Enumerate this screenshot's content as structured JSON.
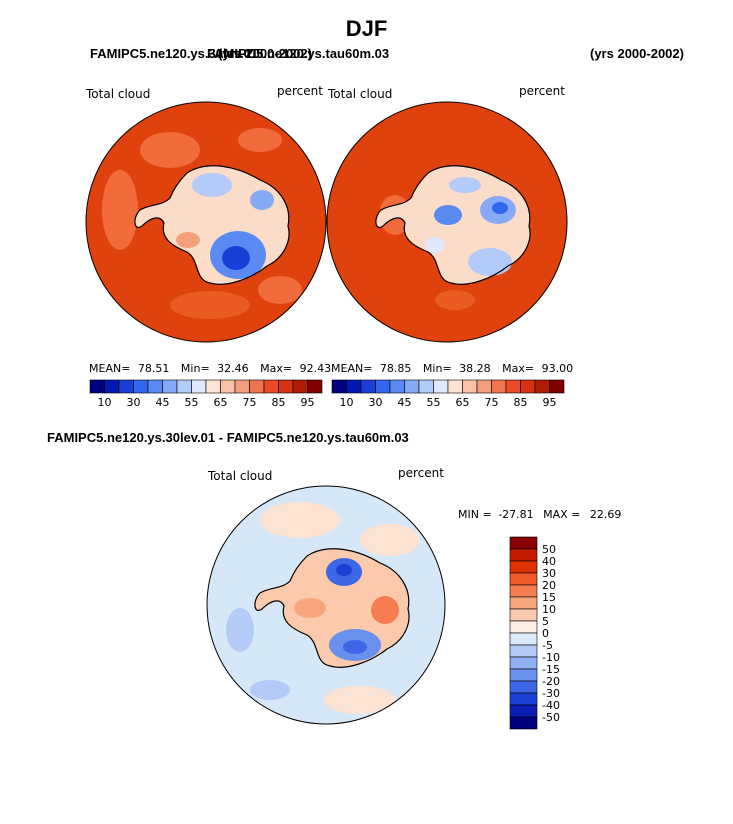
{
  "page": {
    "season": "DJF",
    "header_left": "FAMIPC5.ne120.ys.30lev.01",
    "header_left_overlap": "FAMIPC5.ne120.ys.tau60m.03",
    "header_mid_overlap": "(yrs 2000-2002)",
    "header_right": "(yrs 2000-2002)",
    "diff_title": "FAMIPC5.ne120.ys.30lev.01 - FAMIPC5.ne120.ys.tau60m.03"
  },
  "colors": {
    "ocean_base": "#e0420e",
    "ocean_patch": "#f26b3a",
    "diff_base": "#d6e8f8",
    "coast": "#000000"
  },
  "chart_data": [
    {
      "type": "heatmap",
      "projection": "south-polar-stereographic",
      "variable": "Total cloud",
      "units": "percent",
      "stats": {
        "mean_label": "MEAN=",
        "mean": "78.51",
        "min_label": "Min=",
        "min": "32.46",
        "max_label": "Max=",
        "max": "92.43"
      },
      "colorbar": {
        "orientation": "horizontal",
        "colors": [
          "#00007f",
          "#0019b3",
          "#1a3fd9",
          "#3366ee",
          "#5a8af2",
          "#86aaf5",
          "#b3cbf8",
          "#dfe9fb",
          "#fde3d3",
          "#f9c2a6",
          "#f59c7c",
          "#f0744f",
          "#ea4b24",
          "#d63310",
          "#b01c04",
          "#7f0000"
        ],
        "ticks": [
          "10",
          "30",
          "45",
          "55",
          "65",
          "75",
          "85",
          "95"
        ]
      }
    },
    {
      "type": "heatmap",
      "projection": "south-polar-stereographic",
      "variable": "Total cloud",
      "units": "percent",
      "stats": {
        "mean_label": "MEAN=",
        "mean": "78.85",
        "min_label": "Min=",
        "min": "38.28",
        "max_label": "Max=",
        "max": "93.00"
      },
      "colorbar": {
        "orientation": "horizontal",
        "colors": [
          "#00007f",
          "#0019b3",
          "#1a3fd9",
          "#3366ee",
          "#5a8af2",
          "#86aaf5",
          "#b3cbf8",
          "#dfe9fb",
          "#fde3d3",
          "#f9c2a6",
          "#f59c7c",
          "#f0744f",
          "#ea4b24",
          "#d63310",
          "#b01c04",
          "#7f0000"
        ],
        "ticks": [
          "10",
          "30",
          "45",
          "55",
          "65",
          "75",
          "85",
          "95"
        ]
      }
    },
    {
      "type": "heatmap",
      "projection": "south-polar-stereographic",
      "variable": "Total cloud",
      "units": "percent",
      "stats": {
        "min_label": "MIN =",
        "min": "-27.81",
        "max_label": "MAX =",
        "max": "22.69"
      },
      "colorbar": {
        "orientation": "vertical",
        "colors": [
          "#8b0000",
          "#c41a00",
          "#e03200",
          "#ef5a28",
          "#f57d4f",
          "#f8a57d",
          "#fbc9ac",
          "#fdeee3",
          "#dcebfb",
          "#b3cbf6",
          "#8fb1f2",
          "#6a90ee",
          "#3f66e6",
          "#1c3fd6",
          "#0a1fb5",
          "#000080"
        ],
        "ticks": [
          "50",
          "40",
          "30",
          "20",
          "15",
          "10",
          "5",
          "0",
          "-5",
          "-10",
          "-15",
          "-20",
          "-30",
          "-40",
          "-50"
        ]
      }
    }
  ]
}
